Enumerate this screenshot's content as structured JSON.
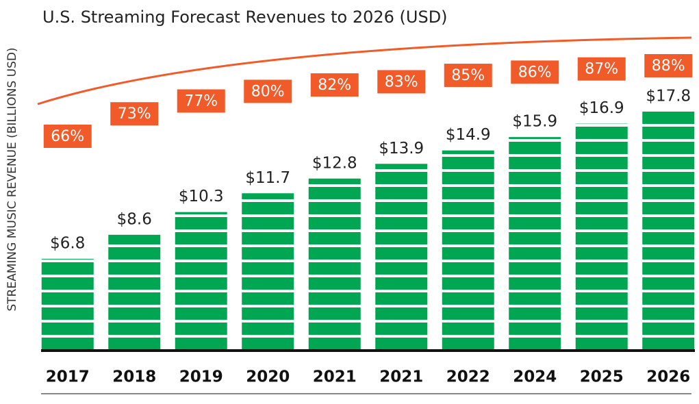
{
  "chart_data": {
    "type": "bar",
    "subtitle": "U.S. Streaming Forecast Revenues to 2026 (USD)",
    "y_label": "STREAMING MUSIC REVENUE (BILLIONS USD)",
    "categories": [
      "2017",
      "2018",
      "2019",
      "2020",
      "2021",
      "2021",
      "2022",
      "2024",
      "2025",
      "2026"
    ],
    "values": [
      6.8,
      8.6,
      10.3,
      11.7,
      12.8,
      13.9,
      14.9,
      15.9,
      16.9,
      17.8
    ],
    "value_labels": [
      "$6.8",
      "$8.6",
      "$10.3",
      "$11.7",
      "$12.8",
      "$13.9",
      "$14.9",
      "$15.9",
      "$16.9",
      "$17.8"
    ],
    "percent_values": [
      66,
      73,
      77,
      80,
      82,
      83,
      85,
      86,
      87,
      88
    ],
    "percent_labels": [
      "66%",
      "73%",
      "77%",
      "80%",
      "82%",
      "83%",
      "85%",
      "86%",
      "87%",
      "88%"
    ],
    "color": "#00a651",
    "percent_color": "#f15a29",
    "ylim": [
      0,
      20
    ]
  }
}
